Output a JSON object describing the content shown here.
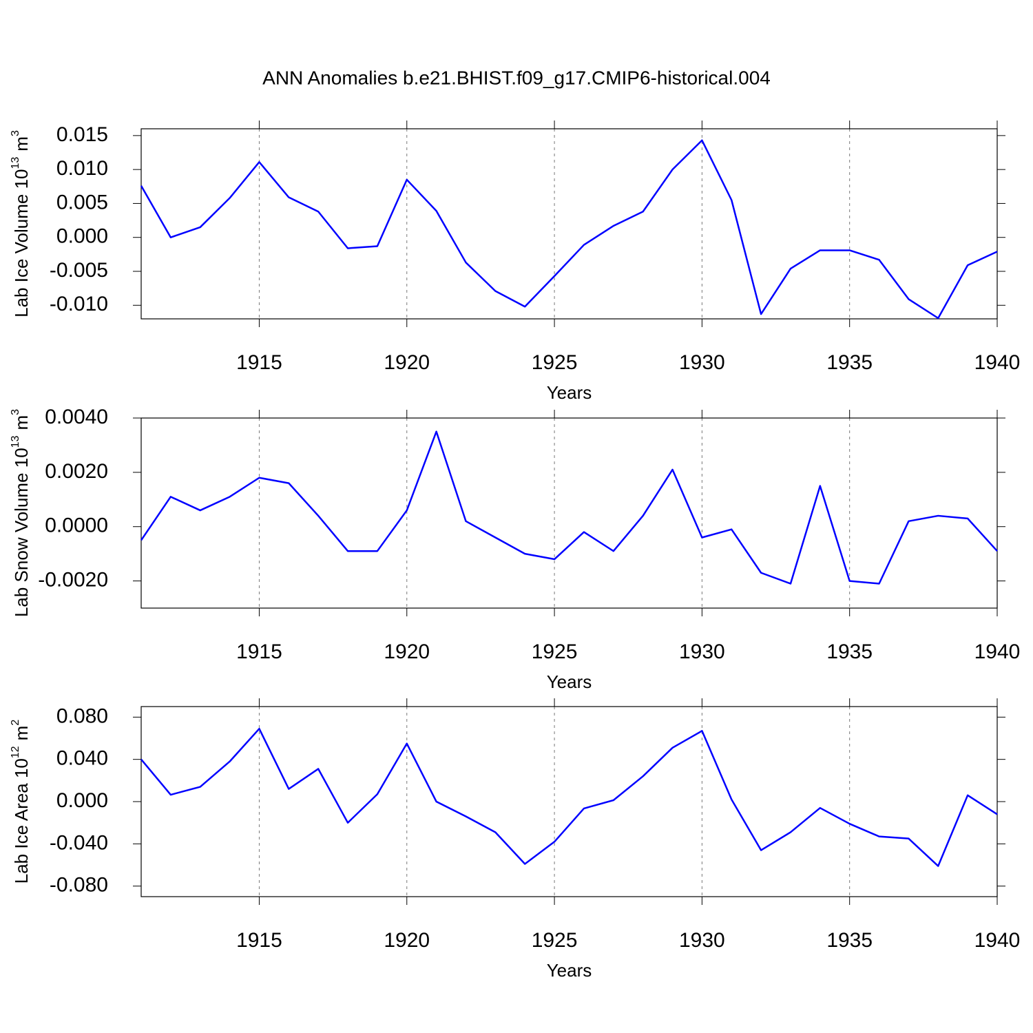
{
  "chart_data": [
    {
      "type": "line",
      "title": "ANN Anomalies b.e21.BHIST.f09_g17.CMIP6-historical.004",
      "xlabel": "Years",
      "ylabel": {
        "text": "Lab Ice Volume 10",
        "exp": "13",
        "unit": "m",
        "unit_exp": "3"
      },
      "x": [
        1911,
        1912,
        1913,
        1914,
        1915,
        1916,
        1917,
        1918,
        1919,
        1920,
        1921,
        1922,
        1923,
        1924,
        1925,
        1926,
        1927,
        1928,
        1929,
        1930,
        1931,
        1932,
        1933,
        1934,
        1935,
        1936,
        1937,
        1938,
        1939,
        1940
      ],
      "series": [
        {
          "color": "#0000ff",
          "values": [
            0.0076,
            0.0,
            0.0015,
            0.0058,
            0.0111,
            0.0059,
            0.0038,
            -0.0016,
            -0.0013,
            0.0085,
            0.0039,
            -0.0037,
            -0.0079,
            -0.0102,
            -0.0057,
            -0.0011,
            0.0017,
            0.0038,
            0.01,
            0.0143,
            0.0055,
            -0.0113,
            -0.0046,
            -0.0019,
            -0.0019,
            -0.0033,
            -0.0091,
            -0.0119,
            -0.0041,
            -0.0021
          ]
        }
      ],
      "xlim": [
        1911,
        1940
      ],
      "xticks": [
        1915,
        1920,
        1925,
        1930,
        1935,
        1940
      ],
      "ylim": [
        -0.012,
        0.016
      ],
      "yticks": [
        {
          "value": -0.01,
          "label": "-0.010"
        },
        {
          "value": -0.005,
          "label": "-0.005"
        },
        {
          "value": 0,
          "label": "0.000"
        },
        {
          "value": 0.005,
          "label": "0.005"
        },
        {
          "value": 0.01,
          "label": "0.010"
        },
        {
          "value": 0.015,
          "label": "0.015"
        }
      ],
      "grid": "x"
    },
    {
      "type": "line",
      "xlabel": "Years",
      "ylabel": {
        "text": "Lab Snow Volume 10",
        "exp": "13",
        "unit": "m",
        "unit_exp": "3"
      },
      "x": [
        1911,
        1912,
        1913,
        1914,
        1915,
        1916,
        1917,
        1918,
        1919,
        1920,
        1921,
        1922,
        1923,
        1924,
        1925,
        1926,
        1927,
        1928,
        1929,
        1930,
        1931,
        1932,
        1933,
        1934,
        1935,
        1936,
        1937,
        1938,
        1939,
        1940
      ],
      "series": [
        {
          "color": "#0000ff",
          "values": [
            -0.0005,
            0.0011,
            0.0006,
            0.0011,
            0.0018,
            0.0016,
            0.0004,
            -0.0009,
            -0.0009,
            0.0006,
            0.0035,
            0.0002,
            -0.0004,
            -0.001,
            -0.0012,
            -0.0002,
            -0.0009,
            0.0004,
            0.0021,
            -0.0004,
            -0.0001,
            -0.0017,
            -0.0021,
            0.0015,
            -0.002,
            -0.0021,
            0.0002,
            0.0004,
            0.0003,
            -0.0009
          ]
        }
      ],
      "xlim": [
        1911,
        1940
      ],
      "xticks": [
        1915,
        1920,
        1925,
        1930,
        1935,
        1940
      ],
      "ylim": [
        -0.003,
        0.004
      ],
      "yticks": [
        {
          "value": -0.002,
          "label": "-0.0020"
        },
        {
          "value": 0,
          "label": "0.0000"
        },
        {
          "value": 0.002,
          "label": "0.0020"
        },
        {
          "value": 0.004,
          "label": "0.0040"
        }
      ],
      "grid": "x"
    },
    {
      "type": "line",
      "xlabel": "Years",
      "ylabel": {
        "text": "Lab Ice Area 10",
        "exp": "12",
        "unit": "m",
        "unit_exp": "2"
      },
      "x": [
        1911,
        1912,
        1913,
        1914,
        1915,
        1916,
        1917,
        1918,
        1919,
        1920,
        1921,
        1922,
        1923,
        1924,
        1925,
        1926,
        1927,
        1928,
        1929,
        1930,
        1931,
        1932,
        1933,
        1934,
        1935,
        1936,
        1937,
        1938,
        1939,
        1940
      ],
      "series": [
        {
          "color": "#0000ff",
          "values": [
            0.04,
            0.0065,
            0.014,
            0.038,
            0.069,
            0.012,
            0.031,
            -0.02,
            0.007,
            0.055,
            0.0,
            -0.014,
            -0.029,
            -0.059,
            -0.038,
            -0.0065,
            0.0013,
            0.024,
            0.051,
            0.067,
            0.002,
            -0.046,
            -0.029,
            -0.006,
            -0.021,
            -0.033,
            -0.035,
            -0.061,
            0.006,
            -0.012
          ]
        }
      ],
      "xlim": [
        1911,
        1940
      ],
      "xticks": [
        1915,
        1920,
        1925,
        1930,
        1935,
        1940
      ],
      "ylim": [
        -0.09,
        0.09
      ],
      "yticks": [
        {
          "value": -0.08,
          "label": "-0.080"
        },
        {
          "value": -0.04,
          "label": "-0.040"
        },
        {
          "value": 0,
          "label": "0.000"
        },
        {
          "value": 0.04,
          "label": "0.040"
        },
        {
          "value": 0.08,
          "label": "0.080"
        }
      ],
      "grid": "x"
    }
  ]
}
